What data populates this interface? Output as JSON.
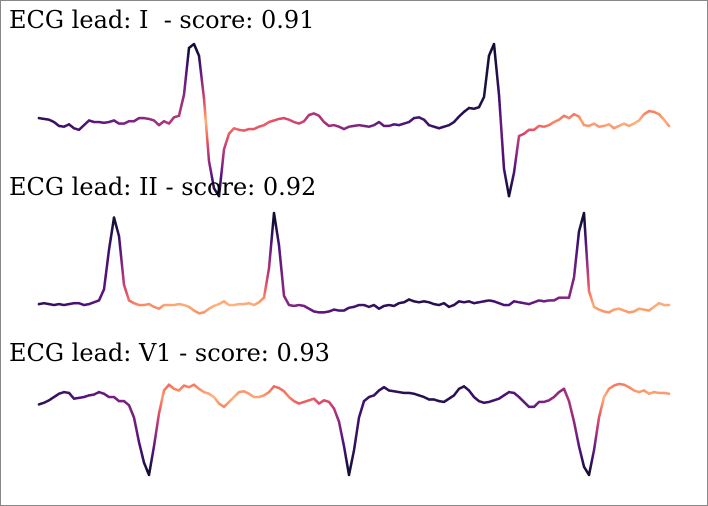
{
  "chart_data": [
    {
      "type": "line",
      "title": "ECG lead: I  - score: 0.91",
      "lead": "I",
      "score": 0.91,
      "colormap": "magma",
      "x": [
        0,
        5,
        10,
        15,
        20,
        25,
        30,
        35,
        40,
        45,
        50,
        55,
        60,
        65,
        70,
        75,
        80,
        85,
        90,
        95,
        100,
        105,
        110,
        115,
        120,
        125,
        130,
        135,
        140,
        145,
        150,
        155,
        160,
        165,
        170,
        175,
        180,
        185,
        190,
        195,
        200,
        205,
        210,
        215,
        220,
        225,
        230,
        235,
        240,
        245,
        250,
        255,
        260,
        265,
        270,
        275,
        280,
        285,
        290,
        295,
        300,
        305,
        310,
        315,
        320,
        325,
        330,
        335,
        340,
        345,
        350,
        355,
        360,
        365,
        370,
        375,
        380,
        385,
        390,
        395,
        400,
        405,
        410,
        415,
        420,
        425,
        430,
        435,
        440,
        445,
        450,
        455,
        460,
        465,
        470,
        475,
        480,
        485,
        490,
        495,
        500,
        505,
        510,
        515,
        520,
        525,
        530,
        535,
        540,
        545,
        550,
        555,
        560,
        565,
        570,
        575,
        580,
        585,
        590,
        595,
        600,
        605,
        610,
        615,
        620,
        625,
        630
      ],
      "values": [
        0.05,
        0.04,
        0.03,
        0.0,
        -0.05,
        -0.06,
        -0.03,
        -0.08,
        -0.1,
        -0.04,
        0.02,
        0.0,
        0.0,
        -0.01,
        0.0,
        0.02,
        -0.02,
        -0.02,
        0.01,
        0.01,
        0.05,
        0.05,
        0.04,
        0.02,
        -0.04,
        0.01,
        -0.02,
        0.06,
        0.08,
        0.35,
        0.95,
        1.0,
        0.85,
        0.3,
        -0.5,
        -0.85,
        -0.95,
        -0.35,
        -0.15,
        -0.08,
        -0.1,
        -0.11,
        -0.09,
        -0.09,
        -0.06,
        -0.04,
        0.0,
        0.02,
        0.04,
        0.05,
        0.03,
        0.0,
        -0.02,
        0.01,
        0.09,
        0.11,
        0.08,
        0.0,
        -0.05,
        -0.04,
        -0.06,
        -0.09,
        -0.06,
        -0.05,
        -0.04,
        -0.05,
        -0.06,
        -0.04,
        0.0,
        -0.05,
        -0.05,
        -0.03,
        -0.04,
        -0.02,
        0.0,
        0.05,
        0.06,
        0.03,
        -0.04,
        -0.06,
        -0.08,
        -0.06,
        -0.04,
        0.0,
        0.07,
        0.13,
        0.18,
        0.17,
        0.19,
        0.32,
        0.85,
        1.0,
        0.35,
        -0.6,
        -0.95,
        -0.65,
        -0.18,
        -0.15,
        -0.1,
        -0.1,
        -0.05,
        -0.06,
        -0.04,
        0.0,
        0.03,
        0.08,
        0.05,
        0.1,
        0.07,
        -0.04,
        -0.05,
        -0.02,
        -0.06,
        -0.05,
        -0.03,
        -0.08,
        -0.05,
        -0.02,
        -0.05,
        -0.02,
        0.02,
        0.1,
        0.14,
        0.13,
        0.1,
        0.03,
        -0.05
      ]
    },
    {
      "type": "line",
      "title": "ECG lead: II - score: 0.92",
      "lead": "II",
      "score": 0.92,
      "colormap": "magma",
      "x": [
        0,
        5,
        10,
        15,
        20,
        25,
        30,
        35,
        40,
        45,
        50,
        55,
        60,
        65,
        70,
        75,
        80,
        85,
        90,
        95,
        100,
        105,
        110,
        115,
        120,
        125,
        130,
        135,
        140,
        145,
        150,
        155,
        160,
        165,
        170,
        175,
        180,
        185,
        190,
        195,
        200,
        205,
        210,
        215,
        220,
        225,
        230,
        235,
        240,
        245,
        250,
        255,
        260,
        265,
        270,
        275,
        280,
        285,
        290,
        295,
        300,
        305,
        310,
        315,
        320,
        325,
        330,
        335,
        340,
        345,
        350,
        355,
        360,
        365,
        370,
        375,
        380,
        385,
        390,
        395,
        400,
        405,
        410,
        415,
        420,
        425,
        430,
        435,
        440,
        445,
        450,
        455,
        460,
        465,
        470,
        475,
        480,
        485,
        490,
        495,
        500,
        505,
        510,
        515,
        520,
        525,
        530,
        535,
        540,
        545,
        550,
        555,
        560,
        565,
        570,
        575,
        580,
        585,
        590,
        595,
        600,
        605,
        610,
        615,
        620,
        625,
        630
      ],
      "values": [
        0.01,
        0.02,
        0.01,
        0.0,
        0.01,
        0.0,
        0.01,
        0.02,
        0.02,
        0.0,
        0.01,
        0.03,
        0.05,
        0.17,
        0.6,
        0.95,
        0.75,
        0.22,
        0.05,
        0.02,
        0.0,
        0.0,
        0.01,
        -0.02,
        -0.04,
        0.0,
        0.0,
        0.0,
        0.01,
        0.0,
        -0.02,
        -0.06,
        -0.09,
        -0.08,
        -0.04,
        -0.01,
        0.01,
        0.04,
        0.0,
        0.0,
        0.01,
        0.01,
        0.02,
        0.0,
        0.03,
        0.08,
        0.4,
        1.0,
        0.65,
        0.1,
        0.0,
        -0.01,
        0.0,
        -0.01,
        -0.04,
        -0.07,
        -0.08,
        -0.08,
        -0.07,
        -0.05,
        -0.06,
        -0.06,
        -0.03,
        -0.02,
        0.0,
        0.0,
        -0.02,
        0.0,
        -0.04,
        -0.01,
        0.0,
        -0.01,
        0.02,
        0.03,
        0.06,
        0.04,
        0.03,
        0.04,
        0.03,
        0.01,
        0.0,
        0.02,
        -0.02,
        0.0,
        0.04,
        0.03,
        0.04,
        0.02,
        0.03,
        0.04,
        0.05,
        0.04,
        0.02,
        0.0,
        0.0,
        0.04,
        0.03,
        0.02,
        0.01,
        0.03,
        0.05,
        0.04,
        0.05,
        0.05,
        0.08,
        0.08,
        0.08,
        0.3,
        0.8,
        1.0,
        0.15,
        -0.02,
        -0.05,
        -0.07,
        -0.08,
        -0.05,
        -0.04,
        -0.06,
        -0.08,
        -0.07,
        -0.04,
        -0.05,
        -0.06,
        -0.02,
        0.02,
        0.0,
        0.0
      ]
    },
    {
      "type": "line",
      "title": "ECG lead: V1 - score: 0.93",
      "lead": "V1",
      "score": 0.93,
      "colormap": "magma",
      "x": [
        0,
        5,
        10,
        15,
        20,
        25,
        30,
        35,
        40,
        45,
        50,
        55,
        60,
        65,
        70,
        75,
        80,
        85,
        90,
        95,
        100,
        105,
        110,
        115,
        120,
        125,
        130,
        135,
        140,
        145,
        150,
        155,
        160,
        165,
        170,
        175,
        180,
        185,
        190,
        195,
        200,
        205,
        210,
        215,
        220,
        225,
        230,
        235,
        240,
        245,
        250,
        255,
        260,
        265,
        270,
        275,
        280,
        285,
        290,
        295,
        300,
        305,
        310,
        315,
        320,
        325,
        330,
        335,
        340,
        345,
        350,
        355,
        360,
        365,
        370,
        375,
        380,
        385,
        390,
        395,
        400,
        405,
        410,
        415,
        420,
        425,
        430,
        435,
        440,
        445,
        450,
        455,
        460,
        465,
        470,
        475,
        480,
        485,
        490,
        495,
        500,
        505,
        510,
        515,
        520,
        525,
        530,
        535,
        540,
        545,
        550,
        555,
        560,
        565,
        570,
        575,
        580,
        585,
        590,
        595,
        600,
        605,
        610,
        615,
        620,
        625,
        630
      ],
      "values": [
        -0.09,
        -0.07,
        -0.04,
        0.0,
        0.04,
        0.06,
        0.05,
        -0.02,
        -0.01,
        0.0,
        0.02,
        0.03,
        0.06,
        0.04,
        0.0,
        0.0,
        -0.05,
        -0.05,
        -0.1,
        -0.25,
        -0.55,
        -0.8,
        -0.95,
        -0.6,
        -0.2,
        0.08,
        0.15,
        0.1,
        0.08,
        0.14,
        0.12,
        0.15,
        0.1,
        0.06,
        0.04,
        0.0,
        -0.08,
        -0.12,
        -0.06,
        0.0,
        0.06,
        0.07,
        0.04,
        0.0,
        0.0,
        0.02,
        0.06,
        0.13,
        0.11,
        0.07,
        0.0,
        -0.05,
        -0.08,
        -0.06,
        -0.04,
        -0.02,
        -0.08,
        -0.04,
        -0.06,
        -0.14,
        -0.3,
        -0.6,
        -0.95,
        -0.65,
        -0.25,
        -0.05,
        0.0,
        0.02,
        0.08,
        0.12,
        0.08,
        0.07,
        0.06,
        0.05,
        0.05,
        0.04,
        0.02,
        0.0,
        -0.03,
        -0.03,
        -0.05,
        -0.06,
        -0.02,
        0.02,
        0.1,
        0.13,
        0.08,
        0.0,
        -0.05,
        -0.07,
        -0.06,
        -0.04,
        -0.02,
        0.02,
        0.06,
        0.05,
        0.0,
        -0.06,
        -0.12,
        -0.12,
        -0.06,
        -0.06,
        -0.04,
        0.0,
        0.06,
        0.1,
        -0.05,
        -0.3,
        -0.6,
        -0.85,
        -0.95,
        -0.65,
        -0.25,
        0.0,
        0.1,
        0.14,
        0.16,
        0.15,
        0.12,
        0.08,
        0.06,
        0.08,
        0.04,
        0.06,
        0.05,
        0.05,
        0.04
      ]
    }
  ]
}
